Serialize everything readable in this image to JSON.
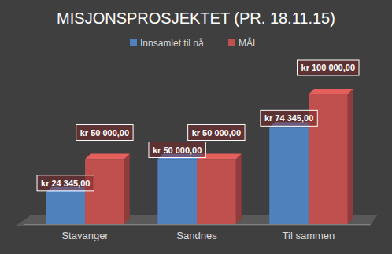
{
  "chart_data": {
    "type": "bar",
    "title": "MISJONSPROSJEKTET (PR. 18.11.15)",
    "categories": [
      "Stavanger",
      "Sandnes",
      "Til sammen"
    ],
    "series": [
      {
        "name": "Innsamlet til nå",
        "color": "#4f81bd",
        "values": [
          24345,
          50000,
          74345
        ],
        "value_labels": [
          "kr 24 345,00",
          "kr 50 000,00",
          "kr 74 345,00"
        ]
      },
      {
        "name": "MÅL",
        "color": "#c0504d",
        "values": [
          50000,
          50000,
          100000
        ],
        "value_labels": [
          "kr 50 000,00",
          "kr 50 000,00",
          "kr 100 000,00"
        ]
      }
    ],
    "ylim": [
      0,
      100000
    ],
    "data_labels": true,
    "legend": "top",
    "tick_labels": "x",
    "grid": false
  }
}
